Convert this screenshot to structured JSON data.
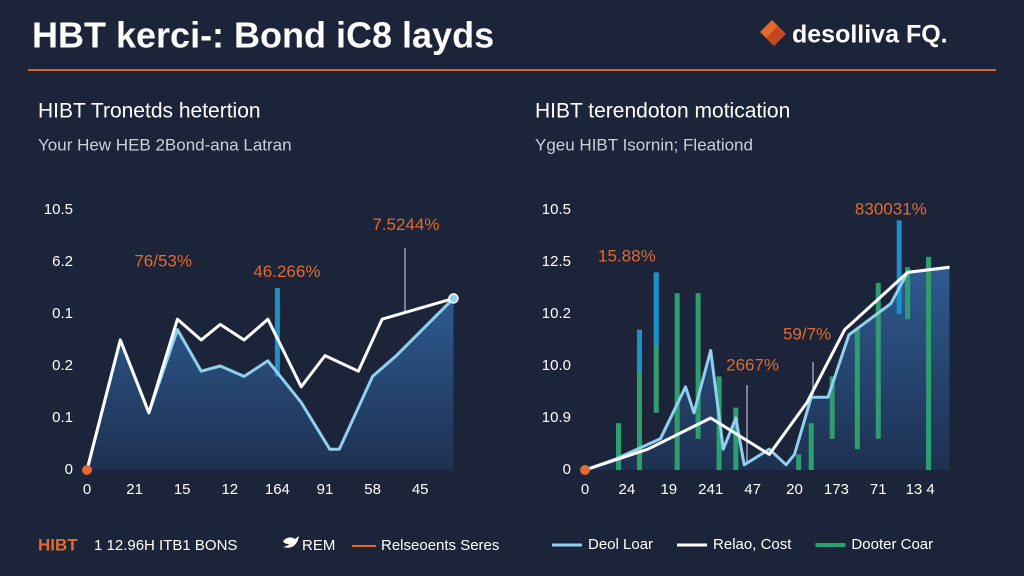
{
  "header": {
    "title": "HBT kerci-: Bond iC8 layds",
    "logo": "desolliva FQ."
  },
  "chart_data": [
    {
      "type": "line",
      "title": "HIBT Tronetds hetertion",
      "subtitle": "Your Hew HEB 2Bond-ana Latran",
      "xlim": [
        0,
        7.7
      ],
      "xticks": [
        0,
        {
          "value": 1,
          "label": "21"
        },
        {
          "value": 2,
          "label": "15"
        },
        {
          "value": 3,
          "label": "12"
        },
        {
          "value": 4,
          "label": "164"
        },
        {
          "value": 5,
          "label": "91"
        },
        {
          "value": 6,
          "label": "58"
        },
        {
          "value": 7,
          "label": "45"
        }
      ],
      "ylim": [
        0,
        5.3
      ],
      "yticks": [
        0,
        {
          "value": 1,
          "label": "0.1"
        },
        {
          "value": 2,
          "label": "0.2"
        },
        {
          "value": 3,
          "label": "0.1"
        },
        {
          "value": 4,
          "label": "6.2"
        },
        {
          "value": 5,
          "label": "10.5"
        }
      ],
      "series": [
        {
          "color": "#8fd0ee",
          "area": true,
          "x": [
            0,
            0.7,
            1.3,
            1.9,
            2.4,
            2.8,
            3.3,
            3.8,
            4.5,
            5.1,
            5.3,
            6.0,
            6.5,
            7.7
          ],
          "values": [
            0,
            2.5,
            1.1,
            2.7,
            1.9,
            2.0,
            1.8,
            2.1,
            1.3,
            0.4,
            0.4,
            1.8,
            2.2,
            3.3
          ]
        },
        {
          "color": "#ffffff",
          "x": [
            0,
            0.7,
            1.3,
            1.9,
            2.4,
            2.8,
            3.3,
            3.8,
            4.5,
            5.0,
            5.7,
            6.2,
            7.7
          ],
          "values": [
            0,
            2.5,
            1.1,
            2.9,
            2.5,
            2.8,
            2.5,
            2.9,
            1.6,
            2.2,
            1.9,
            2.9,
            3.3
          ]
        }
      ],
      "ranges": [
        {
          "color": "#1e8fc7",
          "x": [
            4.0
          ],
          "low": [
            1.8
          ],
          "high": [
            3.5
          ]
        }
      ],
      "annotations": [
        {
          "text": "76/53%",
          "x": 1.6,
          "y": 4.0
        },
        {
          "text": "46.266%",
          "x": 4.2,
          "y": 3.8
        },
        {
          "text": "7.5244%",
          "x": 6.7,
          "y": 4.7
        }
      ]
    },
    {
      "type": "line",
      "title": "HIBT terendoton motication",
      "subtitle": "Ygeu HIBT Isornin; Fleationd",
      "xlim": [
        0,
        8.7
      ],
      "xticks": [
        0,
        {
          "value": 1,
          "label": "24"
        },
        {
          "value": 2,
          "label": "19"
        },
        {
          "value": 3,
          "label": "241"
        },
        {
          "value": 4,
          "label": "47"
        },
        {
          "value": 5,
          "label": "20"
        },
        {
          "value": 6,
          "label": "173"
        },
        {
          "value": 7,
          "label": "71"
        },
        {
          "value": 8,
          "label": "13 4"
        }
      ],
      "ylim": [
        0,
        5.3
      ],
      "yticks": [
        0,
        {
          "value": 1,
          "label": "10.9"
        },
        {
          "value": 2,
          "label": "10.0"
        },
        {
          "value": 3,
          "label": "10.2"
        },
        {
          "value": 4,
          "label": "12.5"
        },
        {
          "value": 5,
          "label": "10.5"
        }
      ],
      "series": [
        {
          "name": "Deol Loar",
          "color": "#8fd0ee",
          "area": true,
          "x": [
            0,
            0.7,
            1.8,
            2.4,
            2.6,
            3.0,
            3.3,
            3.6,
            3.8,
            4.4,
            4.8,
            5.0,
            5.4,
            5.8,
            6.3,
            6.8,
            7.3,
            7.7,
            8.7
          ],
          "values": [
            0,
            0.2,
            0.6,
            1.6,
            1.1,
            2.3,
            0.4,
            1.0,
            0.1,
            0.4,
            0.1,
            0.3,
            1.4,
            1.4,
            2.6,
            2.9,
            3.2,
            3.8,
            3.9
          ]
        },
        {
          "name": "Relao, Cost",
          "color": "#ffffff",
          "x": [
            0,
            1.5,
            3.0,
            4.4,
            5.3,
            6.2,
            7.7,
            8.7
          ],
          "values": [
            0,
            0.4,
            1.0,
            0.3,
            1.3,
            2.7,
            3.8,
            3.9
          ]
        }
      ],
      "ranges": [
        {
          "name": "Dooter Coar",
          "color": "#2f9e6e",
          "x": [
            0.8,
            1.3,
            1.7,
            2.2,
            2.7,
            3.2,
            3.6,
            5.1,
            5.4,
            5.9,
            6.5,
            7.0,
            7.7,
            8.2
          ],
          "low": [
            0,
            0,
            1.1,
            0,
            0.6,
            0,
            0,
            0,
            0,
            0.6,
            0.4,
            0.6,
            2.9,
            0
          ],
          "high": [
            0.9,
            2.5,
            3.8,
            3.4,
            3.4,
            1.8,
            1.2,
            0.3,
            0.9,
            1.8,
            2.7,
            3.6,
            3.9,
            4.1
          ]
        },
        {
          "color": "#1e8fc7",
          "x": [
            1.7,
            1.3,
            7.5
          ],
          "low": [
            2.4,
            1.9,
            3.0
          ],
          "high": [
            3.8,
            2.7,
            4.8
          ]
        }
      ],
      "annotations": [
        {
          "text": "15.88%",
          "x": 1.0,
          "y": 4.1
        },
        {
          "text": "2667%",
          "x": 4.0,
          "y": 2.0
        },
        {
          "text": "59/7%",
          "x": 5.3,
          "y": 2.6
        },
        {
          "text": "830031%",
          "x": 7.3,
          "y": 5.0
        }
      ]
    }
  ],
  "footer": {
    "left_brand": "HIBT",
    "left_text": "1 12.96H ITB1 BONS",
    "left_icon_text": "REM",
    "left_series": "Relseoents Seres"
  }
}
